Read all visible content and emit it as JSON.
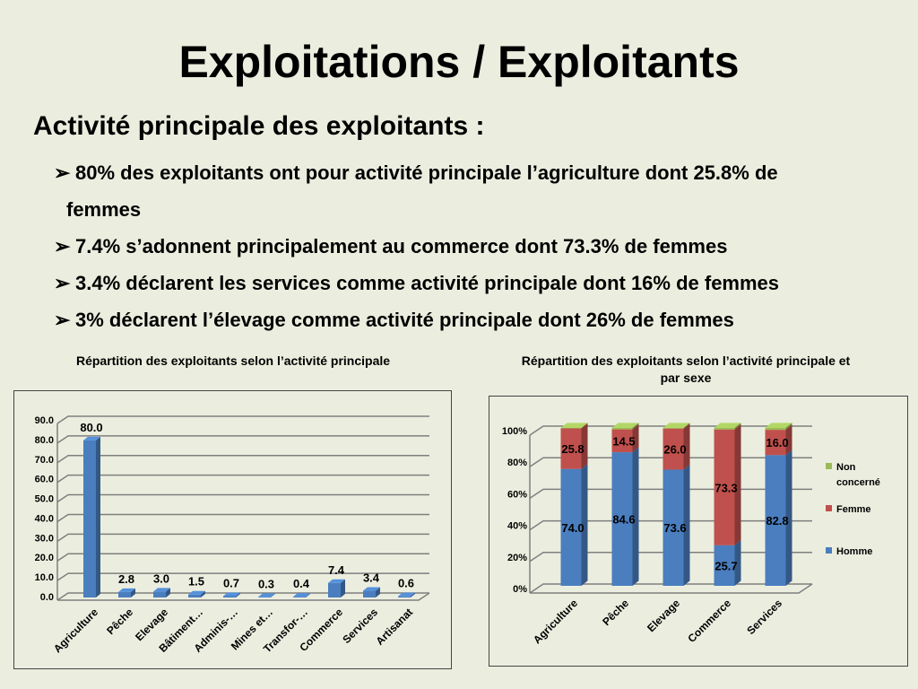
{
  "title": "Exploitations / Exploitants",
  "subtitle": "Activité principale des exploitants :",
  "bullet_icon": "arrow-bullet-icon",
  "bullets": [
    "80% des exploitants ont pour activité principale l’agriculture dont 25.8% de femmes",
    "7.4% s’adonnent principalement au commerce dont 73.3% de femmes",
    "3.4% déclarent les services comme activité principale dont 16% de femmes",
    "3% déclarent l’élevage comme activité principale dont 26% de femmes"
  ],
  "bullet0_line1": "80% des exploitants ont pour activité principale l’agriculture dont 25.8% de",
  "bullet0_line2": "femmes",
  "colors": {
    "homme": "#4a7ebf",
    "femme": "#c0504d",
    "non": "#9bbb59"
  },
  "chart_data": [
    {
      "type": "bar",
      "title": "Répartition des exploitants selon l’activité principale",
      "categories": [
        "Agriculture",
        "Pêche",
        "Elevage",
        "Bâtiment…",
        "Adminis-…",
        "Mines et…",
        "Transfor-…",
        "Commerce",
        "Services",
        "Artisanat"
      ],
      "values": [
        80.0,
        2.8,
        3.0,
        1.5,
        0.7,
        0.3,
        0.4,
        7.4,
        3.4,
        0.6
      ],
      "value_labels": [
        "80.0",
        "2.8",
        "3.0",
        "1.5",
        "0.7",
        "0.3",
        "0.4",
        "7.4",
        "3.4",
        "0.6"
      ],
      "yticks": [
        "0.0",
        "10.0",
        "20.0",
        "30.0",
        "40.0",
        "50.0",
        "60.0",
        "70.0",
        "80.0",
        "90.0"
      ],
      "ylim": [
        0,
        90
      ],
      "grid": true,
      "xlabel": "",
      "ylabel": ""
    },
    {
      "type": "bar",
      "stacked": true,
      "title": "Répartition des exploitants selon l’activité principale et par sexe",
      "categories": [
        "Agriculture",
        "Pêche",
        "Elevage",
        "Commerce",
        "Services"
      ],
      "series": [
        {
          "name": "Homme",
          "values": [
            74.0,
            84.6,
            73.6,
            25.7,
            82.8
          ],
          "labels": [
            "74.0",
            "84.6",
            "73.6",
            "25.7",
            "82.8"
          ]
        },
        {
          "name": "Femme",
          "values": [
            25.8,
            14.5,
            26.0,
            73.3,
            16.0
          ],
          "labels": [
            "25.8",
            "14.5",
            "26.0",
            "73.3",
            "16.0"
          ]
        },
        {
          "name": "Non concerné",
          "values": [
            0.2,
            0.9,
            0.4,
            1.0,
            1.2
          ]
        }
      ],
      "yticks": [
        "0%",
        "20%",
        "40%",
        "60%",
        "80%",
        "100%"
      ],
      "ylim": [
        0,
        100
      ],
      "grid": true,
      "legend": "right"
    }
  ]
}
